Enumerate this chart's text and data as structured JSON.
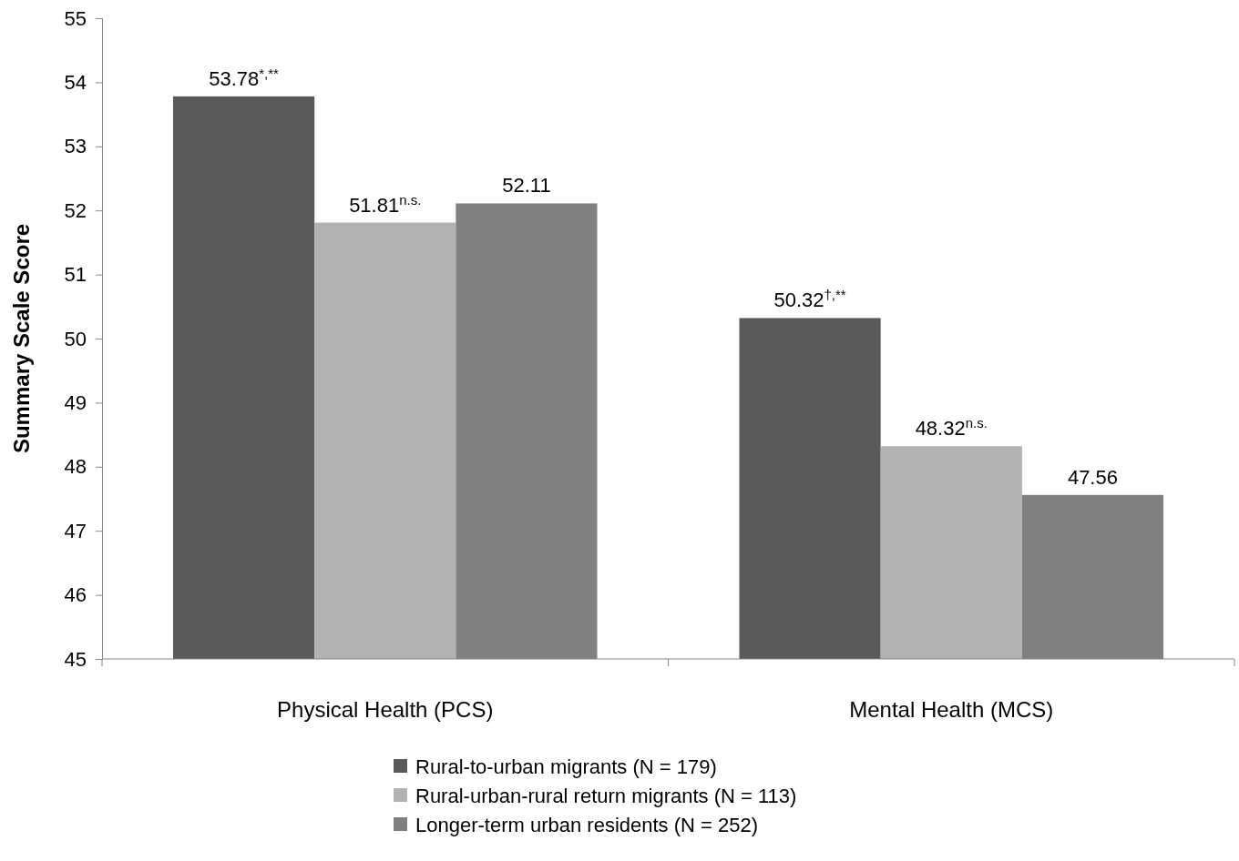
{
  "chart_data": {
    "type": "bar",
    "ylabel": "Summary Scale Score",
    "categories": [
      "Physical Health (PCS)",
      "Mental Health (MCS)"
    ],
    "series": [
      {
        "name": "Rural-to-urban migrants (N = 179)",
        "color": "#5a5a5a",
        "values": [
          53.78,
          50.32
        ],
        "value_labels": [
          "53.78$^{*,**}$",
          "50.32$^{†,**}$"
        ]
      },
      {
        "name": "Rural-urban-rural return migrants (N = 113)",
        "color": "#b2b2b2",
        "values": [
          51.81,
          48.32
        ],
        "value_labels": [
          "51.81$^{n.s.}$",
          "48.32$^{n.s.}$"
        ]
      },
      {
        "name": "Longer-term urban residents (N = 252)",
        "color": "#808080",
        "values": [
          52.11,
          47.56
        ],
        "value_labels": [
          "52.11",
          "47.56"
        ]
      }
    ],
    "ylim": [
      45,
      55
    ],
    "yticks": [
      45,
      46,
      47,
      48,
      49,
      50,
      51,
      52,
      53,
      54,
      55
    ],
    "grid": false,
    "legend": "bottom"
  }
}
